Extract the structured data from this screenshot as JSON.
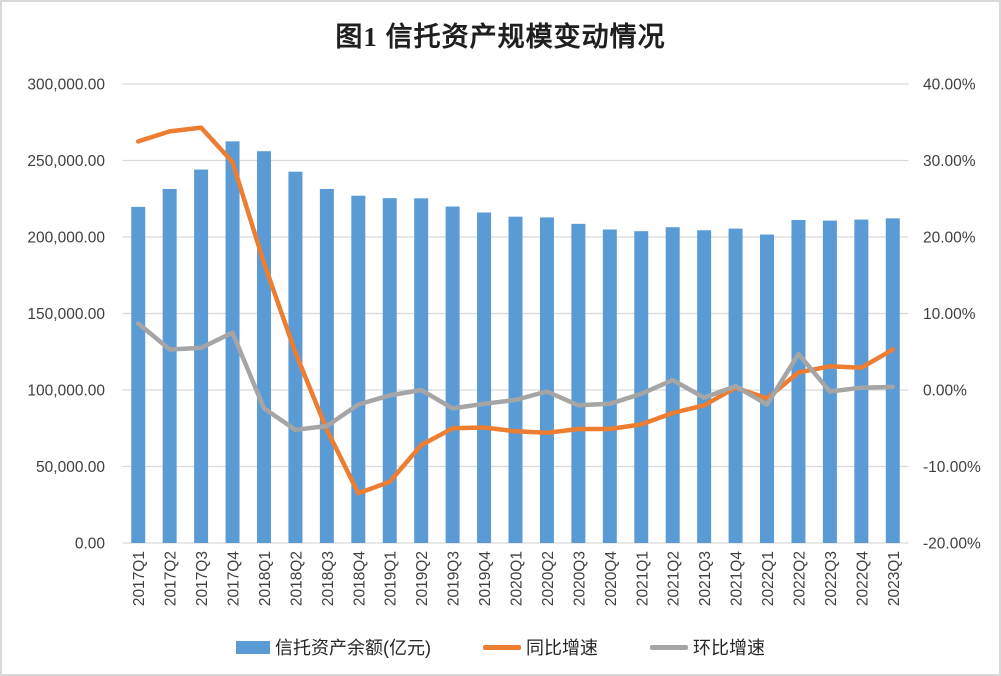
{
  "chart_data": {
    "type": "bar-line-combo",
    "title": "图1 信托资产规模变动情况",
    "categories": [
      "2017Q1",
      "2017Q2",
      "2017Q3",
      "2017Q4",
      "2018Q1",
      "2018Q2",
      "2018Q3",
      "2018Q4",
      "2019Q1",
      "2019Q2",
      "2019Q3",
      "2019Q4",
      "2020Q1",
      "2020Q2",
      "2020Q3",
      "2020Q4",
      "2021Q1",
      "2021Q2",
      "2021Q3",
      "2021Q4",
      "2022Q1",
      "2022Q2",
      "2022Q3",
      "2022Q4",
      "2023Q1"
    ],
    "series": [
      {
        "name": "信托资产余额(亿元)",
        "type": "bar",
        "axis": "left",
        "color": "#5B9BD5",
        "values": [
          219700,
          231400,
          244100,
          262500,
          256100,
          242700,
          231400,
          227000,
          225400,
          225300,
          219900,
          216000,
          213300,
          212800,
          208600,
          204900,
          203800,
          206400,
          204400,
          205500,
          201600,
          211100,
          210700,
          211400,
          212200
        ]
      },
      {
        "name": "同比增速",
        "type": "line",
        "axis": "right",
        "color": "#ED7D31",
        "values": [
          32.5,
          33.8,
          34.3,
          29.8,
          16.6,
          4.9,
          -5.2,
          -13.5,
          -12.0,
          -7.2,
          -5.0,
          -4.9,
          -5.4,
          -5.6,
          -5.1,
          -5.1,
          -4.5,
          -3.0,
          -2.0,
          0.3,
          -1.1,
          2.3,
          3.1,
          2.9,
          5.3
        ]
      },
      {
        "name": "环比增速",
        "type": "line",
        "axis": "right",
        "color": "#A5A5A5",
        "values": [
          8.7,
          5.3,
          5.5,
          7.5,
          -2.4,
          -5.2,
          -4.7,
          -1.9,
          -0.7,
          0.0,
          -2.4,
          -1.8,
          -1.3,
          -0.2,
          -2.0,
          -1.8,
          -0.5,
          1.3,
          -1.0,
          0.5,
          -1.9,
          4.7,
          -0.2,
          0.3,
          0.4
        ]
      }
    ],
    "axes": {
      "left": {
        "min": 0,
        "max": 300000,
        "tick_labels": [
          "300,000.00",
          "250,000.00",
          "200,000.00",
          "150,000.00",
          "100,000.00",
          "50,000.00",
          "0.00"
        ]
      },
      "right": {
        "min": -20,
        "max": 40,
        "tick_labels": [
          "40.00%",
          "30.00%",
          "20.00%",
          "10.00%",
          "0.00%",
          "-10.00%",
          "-20.00%"
        ]
      }
    },
    "grid": true,
    "legend_position": "bottom"
  },
  "colors": {
    "grid": "#D9D9D9",
    "axis_text": "#3f3f3f",
    "bar": "#5B9BD5",
    "yoy_line": "#ED7D31",
    "qoq_line": "#A5A5A5",
    "frame_border": "#D9D9D9"
  }
}
